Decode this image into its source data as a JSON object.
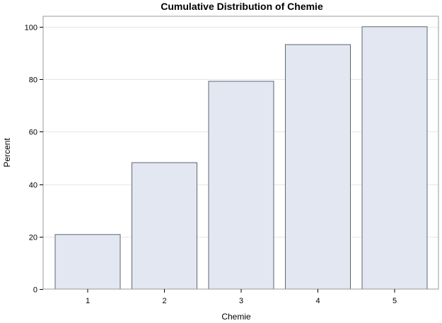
{
  "chart_data": {
    "type": "bar",
    "title": "Cumulative Distribution of Chemie",
    "xlabel": "Chemie",
    "ylabel": "Percent",
    "categories": [
      "1",
      "2",
      "3",
      "4",
      "5"
    ],
    "values": [
      20.8,
      48.2,
      79.2,
      93.2,
      100
    ],
    "ylim": [
      0,
      104
    ],
    "yticks": [
      0,
      20,
      40,
      60,
      80,
      100
    ],
    "grid": true,
    "legend": "none",
    "colors": {
      "bar_fill": "#e2e7f1",
      "bar_stroke": "#5f6470",
      "grid": "#e6e6e6",
      "frame": "#9a9a9a"
    }
  }
}
